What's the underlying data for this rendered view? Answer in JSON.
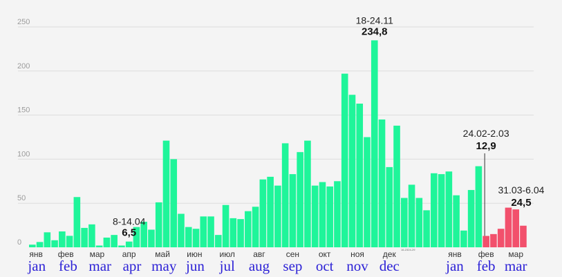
{
  "colors": {
    "normal": "#1ff59a",
    "highlight": "#f2506c",
    "grid": "#dcdcdc",
    "background": "#f4f4f4"
  },
  "chart_data": {
    "type": "bar",
    "title": "",
    "xlabel": "",
    "ylabel": "",
    "ylim": [
      0,
      250
    ],
    "yticks": [
      "0",
      "50",
      "100",
      "150",
      "200",
      "250"
    ],
    "grid": true,
    "values": [
      3,
      6,
      17,
      8,
      18,
      13,
      57,
      22,
      26,
      2,
      11,
      14,
      2,
      6.5,
      23,
      29,
      20,
      51,
      121,
      100,
      38,
      23,
      21,
      35,
      35,
      14,
      48,
      33,
      32,
      41,
      46,
      77,
      80,
      70,
      118,
      83,
      108,
      121,
      70,
      74,
      69,
      75,
      197,
      173,
      163,
      125,
      234.8,
      145,
      91,
      138,
      56,
      71,
      56,
      42,
      84,
      83,
      86,
      59,
      19,
      65,
      92,
      12.9,
      15,
      21,
      45,
      43,
      24.5
    ],
    "highlight_from_index": 61,
    "month_ticks_ru": [
      {
        "label": "янв",
        "bar": 0.5
      },
      {
        "label": "фев",
        "bar": 4.5
      },
      {
        "label": "мар",
        "bar": 8.7
      },
      {
        "label": "апр",
        "bar": 13.0
      },
      {
        "label": "май",
        "bar": 17.5
      },
      {
        "label": "июн",
        "bar": 21.8
      },
      {
        "label": "июл",
        "bar": 26.2
      },
      {
        "label": "авг",
        "bar": 30.5
      },
      {
        "label": "сен",
        "bar": 35.0
      },
      {
        "label": "окт",
        "bar": 39.3
      },
      {
        "label": "ноя",
        "bar": 43.7
      },
      {
        "label": "дек",
        "bar": 48.0
      },
      {
        "label": "янв",
        "bar": 56.8
      },
      {
        "label": "фев",
        "bar": 61.0
      },
      {
        "label": "мар",
        "bar": 65.0
      }
    ],
    "month_ticks_en": [
      {
        "label": "jan",
        "bar": 0.6
      },
      {
        "label": "feb",
        "bar": 4.8
      },
      {
        "label": "mar",
        "bar": 9.1
      },
      {
        "label": "apr",
        "bar": 13.4
      },
      {
        "label": "may",
        "bar": 17.7
      },
      {
        "label": "jun",
        "bar": 21.9
      },
      {
        "label": "jul",
        "bar": 26.2
      },
      {
        "label": "aug",
        "bar": 30.5
      },
      {
        "label": "sep",
        "bar": 35.0
      },
      {
        "label": "oct",
        "bar": 39.3
      },
      {
        "label": "nov",
        "bar": 43.7
      },
      {
        "label": "dec",
        "bar": 48.0
      },
      {
        "label": "jan",
        "bar": 56.8
      },
      {
        "label": "feb",
        "bar": 61.0
      },
      {
        "label": "mar",
        "bar": 65.0
      }
    ],
    "annotations": [
      {
        "label": "8-14.04",
        "value": "6,5",
        "bar": 13
      },
      {
        "label": "18-24.11",
        "value": "234,8",
        "bar": 46
      },
      {
        "label": "24.02-2.03",
        "value": "12,9",
        "bar": 61,
        "leader": true
      },
      {
        "label": "31.03-6.04",
        "value": "24,5",
        "bar": 66
      }
    ],
    "small_label": "16-2324-29"
  }
}
